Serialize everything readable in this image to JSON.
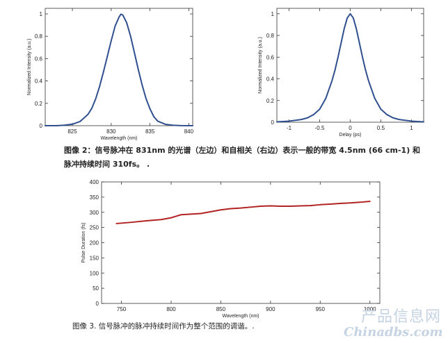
{
  "charts": [
    {
      "id": "spectrum",
      "type": "line",
      "xlabel": "Wavelength (nm)",
      "ylabel": "Normalized Intensity (a.u.)",
      "xlim": [
        821.5,
        840.5
      ],
      "ylim": [
        0,
        1.05
      ],
      "xticks": [
        825,
        830,
        835,
        840
      ],
      "yticks": [
        0,
        0.2,
        0.4,
        0.6,
        0.8,
        1
      ],
      "ytick_labels": [
        "0",
        "0.2",
        "0.4",
        "0.6",
        "0.8",
        "1"
      ],
      "grid": false,
      "color": "#2f4f8f",
      "x": [
        821.5,
        823,
        824,
        825,
        826,
        827,
        827.5,
        828,
        828.5,
        829,
        829.5,
        830,
        830.5,
        831,
        831.25,
        831.5,
        832,
        832.5,
        833,
        833.5,
        834,
        834.5,
        835,
        835.5,
        836,
        837,
        838,
        839,
        840.5
      ],
      "y": [
        0,
        0,
        0.005,
        0.013,
        0.038,
        0.1,
        0.155,
        0.24,
        0.35,
        0.48,
        0.62,
        0.76,
        0.89,
        0.97,
        0.998,
        0.99,
        0.92,
        0.8,
        0.65,
        0.5,
        0.36,
        0.24,
        0.15,
        0.08,
        0.04,
        0.012,
        0.004,
        0.001,
        0
      ]
    },
    {
      "id": "autocorrelation",
      "type": "line",
      "xlabel": "Delay (ps)",
      "ylabel": "Normalized Intensity (a.u.)",
      "xlim": [
        -1.2,
        1.2
      ],
      "ylim": [
        0,
        1.05
      ],
      "xticks": [
        -1,
        -0.5,
        0,
        0.5,
        1
      ],
      "xtick_labels": [
        "-1",
        "-0.5",
        "0",
        "0.5",
        "1"
      ],
      "yticks": [
        0,
        0.2,
        0.4,
        0.6,
        0.8,
        1
      ],
      "ytick_labels": [
        "0",
        "0.2",
        "0.4",
        "0.6",
        "0.8",
        "1"
      ],
      "grid": false,
      "color": "#2f4f8f",
      "x": [
        -1.2,
        -1.0,
        -0.8,
        -0.7,
        -0.6,
        -0.5,
        -0.4,
        -0.3,
        -0.25,
        -0.2,
        -0.15,
        -0.1,
        -0.05,
        0,
        0.05,
        0.1,
        0.15,
        0.2,
        0.25,
        0.3,
        0.4,
        0.5,
        0.6,
        0.7,
        0.8,
        1.0,
        1.2
      ],
      "y": [
        0.003,
        0.01,
        0.025,
        0.04,
        0.07,
        0.12,
        0.22,
        0.38,
        0.48,
        0.6,
        0.73,
        0.86,
        0.96,
        1.0,
        0.96,
        0.86,
        0.73,
        0.6,
        0.48,
        0.38,
        0.22,
        0.12,
        0.07,
        0.04,
        0.025,
        0.01,
        0.003
      ]
    },
    {
      "id": "duration",
      "type": "line",
      "xlabel": "Wavelength (nm)",
      "ylabel": "Pulse Duration (fs)",
      "xlim": [
        730,
        1010
      ],
      "ylim": [
        0,
        400
      ],
      "xticks": [
        750,
        800,
        850,
        900,
        950,
        1000
      ],
      "yticks": [
        0,
        50,
        100,
        150,
        200,
        250,
        300,
        350,
        400
      ],
      "grid": false,
      "color": "#b22222",
      "x": [
        745,
        760,
        775,
        790,
        800,
        810,
        820,
        830,
        840,
        850,
        860,
        870,
        880,
        890,
        900,
        910,
        920,
        930,
        940,
        950,
        960,
        970,
        980,
        990,
        1000
      ],
      "y": [
        263,
        267,
        272,
        276,
        282,
        292,
        294,
        296,
        302,
        308,
        312,
        314,
        317,
        320,
        321,
        320,
        320,
        321,
        322,
        325,
        327,
        329,
        331,
        333,
        336
      ]
    }
  ],
  "captions": {
    "fig2": "图像 2：信号脉冲在 831nm 的光谱（左边）和自相关（右边）表示一般的带宽 4.5nm (66 cm-1) 和脉冲持续时间 310fs。 .",
    "fig3": "图像 3. 信号脉冲的脉冲持续时间作为整个范围的调谐。."
  },
  "watermark": {
    "line1": "产品信息网",
    "line2": "Chinadbs.com"
  }
}
